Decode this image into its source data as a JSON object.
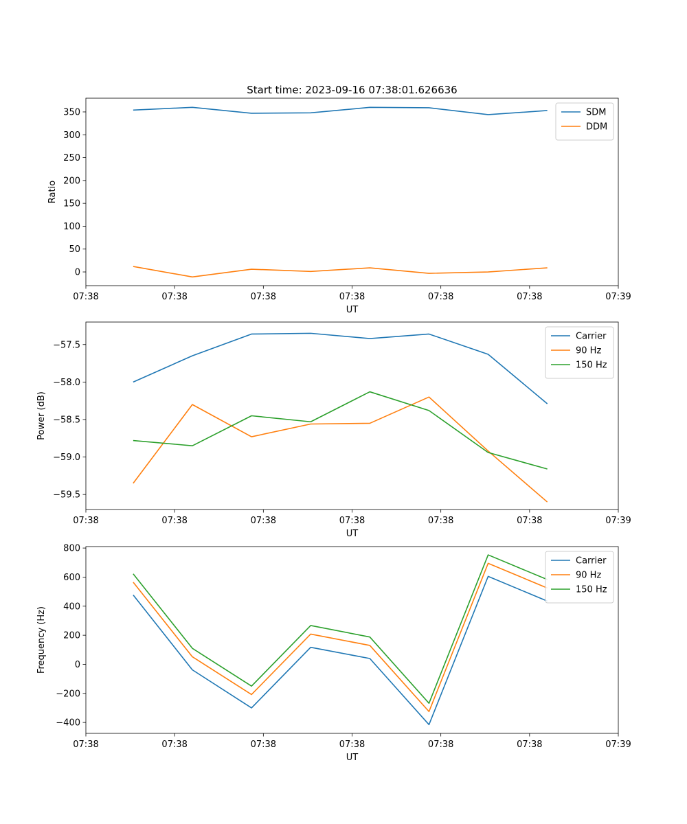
{
  "figure_title": "Start time: 2023-09-16 07:38:01.626636",
  "colors": {
    "blue": "#1f77b4",
    "orange": "#ff7f0e",
    "green": "#2ca02c"
  },
  "chart_data": [
    {
      "type": "line",
      "title": "Start time: 2023-09-16 07:38:01.626636",
      "xlabel": "UT",
      "ylabel": "Ratio",
      "x": [
        1,
        2,
        3,
        4,
        5,
        6,
        7,
        8
      ],
      "xlim": [
        0.2,
        9.2
      ],
      "x_ticks": [
        0.2,
        1.7,
        3.2,
        4.7,
        6.2,
        7.7,
        9.2
      ],
      "x_tick_labels": [
        "07:38",
        "07:38",
        "07:38",
        "07:38",
        "07:38",
        "07:38",
        "07:39"
      ],
      "ylim": [
        -30,
        380
      ],
      "y_ticks": [
        0,
        50,
        100,
        150,
        200,
        250,
        300,
        350
      ],
      "y_tick_labels": [
        "0",
        "50",
        "100",
        "150",
        "200",
        "250",
        "300",
        "350"
      ],
      "legend_position": "top-right",
      "grid": false,
      "series": [
        {
          "name": "SDM",
          "color": "#1f77b4",
          "values": [
            354,
            360,
            347,
            348,
            360,
            359,
            344,
            353
          ]
        },
        {
          "name": "DDM",
          "color": "#ff7f0e",
          "values": [
            12,
            -11,
            6,
            1,
            9,
            -3,
            0,
            9
          ]
        }
      ]
    },
    {
      "type": "line",
      "title": "",
      "xlabel": "UT",
      "ylabel": "Power (dB)",
      "x": [
        1,
        2,
        3,
        4,
        5,
        6,
        7,
        8
      ],
      "xlim": [
        0.2,
        9.2
      ],
      "x_ticks": [
        0.2,
        1.7,
        3.2,
        4.7,
        6.2,
        7.7,
        9.2
      ],
      "x_tick_labels": [
        "07:38",
        "07:38",
        "07:38",
        "07:38",
        "07:38",
        "07:38",
        "07:39"
      ],
      "ylim": [
        -59.7,
        -57.2
      ],
      "y_ticks": [
        -57.5,
        -58.0,
        -58.5,
        -59.0,
        -59.5
      ],
      "y_tick_labels": [
        "−57.5",
        "−58.0",
        "−58.5",
        "−59.0",
        "−59.5"
      ],
      "legend_position": "top-right",
      "grid": false,
      "series": [
        {
          "name": "Carrier",
          "color": "#1f77b4",
          "values": [
            -58.0,
            -57.65,
            -57.36,
            -57.35,
            -57.42,
            -57.36,
            -57.63,
            -58.29
          ]
        },
        {
          "name": "90 Hz",
          "color": "#ff7f0e",
          "values": [
            -59.35,
            -58.3,
            -58.73,
            -58.56,
            -58.55,
            -58.2,
            -58.92,
            -59.6
          ]
        },
        {
          "name": "150 Hz",
          "color": "#2ca02c",
          "values": [
            -58.78,
            -58.85,
            -58.45,
            -58.53,
            -58.13,
            -58.38,
            -58.94,
            -59.16
          ]
        }
      ]
    },
    {
      "type": "line",
      "title": "",
      "xlabel": "UT",
      "ylabel": "Frequency (Hz)",
      "x": [
        1,
        2,
        3,
        4,
        5,
        6,
        7,
        8
      ],
      "xlim": [
        0.2,
        9.2
      ],
      "x_ticks": [
        0.2,
        1.7,
        3.2,
        4.7,
        6.2,
        7.7,
        9.2
      ],
      "x_tick_labels": [
        "07:38",
        "07:38",
        "07:38",
        "07:38",
        "07:38",
        "07:38",
        "07:39"
      ],
      "ylim": [
        -475,
        810
      ],
      "y_ticks": [
        -400,
        -200,
        0,
        200,
        400,
        600,
        800
      ],
      "y_tick_labels": [
        "−400",
        "−200",
        "0",
        "200",
        "400",
        "600",
        "800"
      ],
      "legend_position": "top-right",
      "grid": false,
      "series": [
        {
          "name": "Carrier",
          "color": "#1f77b4",
          "values": [
            477,
            -38,
            -300,
            117,
            40,
            -415,
            605,
            435
          ]
        },
        {
          "name": "90 Hz",
          "color": "#ff7f0e",
          "values": [
            565,
            52,
            -208,
            208,
            130,
            -325,
            695,
            525
          ]
        },
        {
          "name": "150 Hz",
          "color": "#2ca02c",
          "values": [
            622,
            110,
            -150,
            267,
            188,
            -268,
            753,
            583
          ]
        }
      ]
    }
  ]
}
